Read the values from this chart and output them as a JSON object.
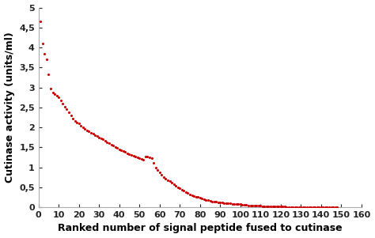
{
  "title": "",
  "xlabel": "Ranked number of signal peptide fused to cutinase",
  "ylabel": "Cutinase activity (units/ml)",
  "xlim": [
    0,
    160
  ],
  "ylim": [
    0,
    5
  ],
  "xticks": [
    0,
    10,
    20,
    30,
    40,
    50,
    60,
    70,
    80,
    90,
    100,
    110,
    120,
    130,
    140,
    150,
    160
  ],
  "yticks": [
    0,
    0.5,
    1,
    1.5,
    2,
    2.5,
    3,
    3.5,
    4,
    4.5,
    5
  ],
  "ytick_labels": [
    "0",
    "0,5",
    "1",
    "1,5",
    "2",
    "2,5",
    "3",
    "3,5",
    "4",
    "4,5",
    "5"
  ],
  "dot_color": "#cc0000",
  "dot_size": 5,
  "background_color": "#ffffff",
  "label_fontsize": 9,
  "tick_fontsize": 8,
  "x_values": [
    1,
    2,
    3,
    4,
    5,
    6,
    7,
    8,
    9,
    10,
    11,
    12,
    13,
    14,
    15,
    16,
    17,
    18,
    19,
    20,
    21,
    22,
    23,
    24,
    25,
    26,
    27,
    28,
    29,
    30,
    31,
    32,
    33,
    34,
    35,
    36,
    37,
    38,
    39,
    40,
    41,
    42,
    43,
    44,
    45,
    46,
    47,
    48,
    49,
    50,
    51,
    52,
    53,
    54,
    55,
    56,
    57,
    58,
    59,
    60,
    61,
    62,
    63,
    64,
    65,
    66,
    67,
    68,
    69,
    70,
    71,
    72,
    73,
    74,
    75,
    76,
    77,
    78,
    79,
    80,
    81,
    82,
    83,
    84,
    85,
    86,
    87,
    88,
    89,
    90,
    91,
    92,
    93,
    94,
    95,
    96,
    97,
    98,
    99,
    100,
    101,
    102,
    103,
    104,
    105,
    106,
    107,
    108,
    109,
    110,
    111,
    112,
    113,
    114,
    115,
    116,
    117,
    118,
    119,
    120,
    121,
    122,
    123,
    124,
    125,
    126,
    127,
    128,
    129,
    130,
    131,
    132,
    133,
    134,
    135,
    136,
    137,
    138,
    139,
    140,
    141,
    142,
    143,
    144,
    145,
    146,
    147,
    148
  ],
  "y_values": [
    4.65,
    4.1,
    3.85,
    3.7,
    3.33,
    2.97,
    2.87,
    2.83,
    2.8,
    2.75,
    2.68,
    2.6,
    2.52,
    2.45,
    2.38,
    2.3,
    2.22,
    2.15,
    2.12,
    2.1,
    2.05,
    2.0,
    1.97,
    1.93,
    1.9,
    1.87,
    1.84,
    1.81,
    1.78,
    1.75,
    1.72,
    1.7,
    1.67,
    1.63,
    1.6,
    1.57,
    1.54,
    1.51,
    1.48,
    1.45,
    1.43,
    1.41,
    1.38,
    1.35,
    1.33,
    1.3,
    1.28,
    1.26,
    1.24,
    1.22,
    1.2,
    1.18,
    1.27,
    1.26,
    1.24,
    1.22,
    1.1,
    1.0,
    0.93,
    0.87,
    0.82,
    0.76,
    0.72,
    0.68,
    0.65,
    0.62,
    0.58,
    0.54,
    0.5,
    0.47,
    0.44,
    0.41,
    0.38,
    0.35,
    0.32,
    0.29,
    0.27,
    0.26,
    0.25,
    0.24,
    0.22,
    0.2,
    0.18,
    0.17,
    0.15,
    0.14,
    0.14,
    0.13,
    0.12,
    0.12,
    0.11,
    0.1,
    0.1,
    0.09,
    0.09,
    0.08,
    0.08,
    0.07,
    0.07,
    0.07,
    0.06,
    0.06,
    0.06,
    0.05,
    0.05,
    0.05,
    0.04,
    0.04,
    0.04,
    0.04,
    0.03,
    0.03,
    0.03,
    0.03,
    0.03,
    0.03,
    0.02,
    0.02,
    0.02,
    0.02,
    0.02,
    0.02,
    0.01,
    0.01,
    0.01,
    0.01,
    0.01,
    0.01,
    0.01,
    0.01,
    0.01,
    0.01,
    0.01,
    0.01,
    0.01,
    0.01,
    0.01,
    0.01,
    0.01,
    0.01,
    0.01,
    0.01,
    0.01,
    0.01,
    0.01,
    0.0,
    0.0,
    0.0
  ]
}
